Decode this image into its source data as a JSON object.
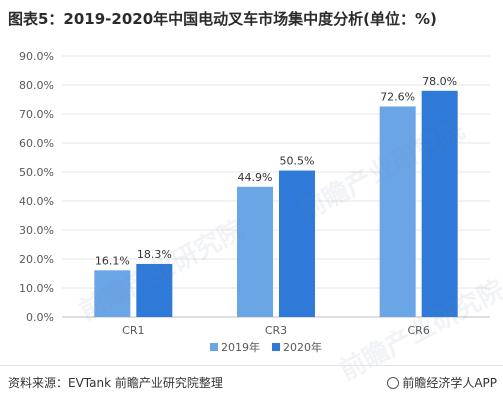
{
  "title": "图表5：2019-2020年中国电动叉车市场集中度分析(单位：%)",
  "source": "资料来源：EVTank 前瞻产业研究院整理",
  "brand": "前瞻经济学人APP",
  "watermark": "前瞻产业研究院",
  "colors": {
    "s2019": "#6aa5e6",
    "s2020": "#2f7ad8",
    "grid": "#e6e6e6",
    "axis": "#595959"
  },
  "chart_data": {
    "type": "bar",
    "categories": [
      "CR1",
      "CR3",
      "CR6"
    ],
    "series": [
      {
        "name": "2019年",
        "values": [
          16.1,
          44.9,
          72.6
        ],
        "labels": [
          "16.1%",
          "44.9%",
          "72.6%"
        ]
      },
      {
        "name": "2020年",
        "values": [
          18.3,
          50.5,
          78.0
        ],
        "labels": [
          "18.3%",
          "50.5%",
          "78.0%"
        ]
      }
    ],
    "ylim": [
      0,
      90
    ],
    "yticks": [
      "0.0%",
      "10.0%",
      "20.0%",
      "30.0%",
      "40.0%",
      "50.0%",
      "60.0%",
      "70.0%",
      "80.0%",
      "90.0%"
    ],
    "grid": true,
    "legend": "bottom-center"
  }
}
